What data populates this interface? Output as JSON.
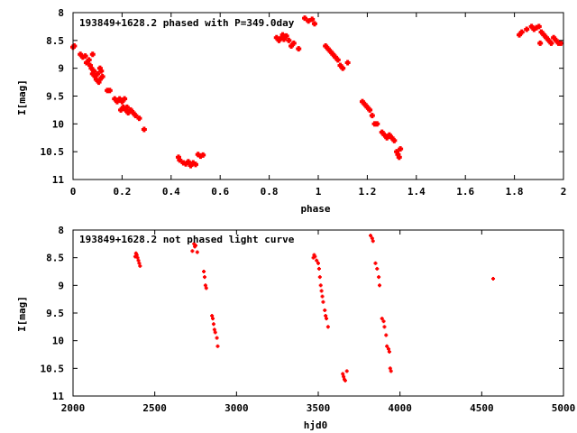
{
  "chart_data": [
    {
      "type": "scatter",
      "title": "193849+1628.2 phased with P=349.0day",
      "xlabel": "phase",
      "ylabel": "I[mag]",
      "xlim": [
        0,
        2
      ],
      "ylim": [
        11,
        8
      ],
      "y_inverted": true,
      "x_ticks": [
        0,
        0.2,
        0.4,
        0.6,
        0.8,
        1,
        1.2,
        1.4,
        1.6,
        1.8,
        2
      ],
      "x_tick_labels": [
        "0",
        "0.2",
        "0.4",
        "0.6",
        "0.8",
        "1",
        "1.2",
        "1.4",
        "1.6",
        "1.8",
        "2"
      ],
      "y_ticks": [
        8,
        8.5,
        9,
        9.5,
        10,
        10.5,
        11
      ],
      "y_tick_labels": [
        "8",
        "8.5",
        "9",
        "9.5",
        "10",
        "10.5",
        "11"
      ],
      "grid": false,
      "marker_color": "#ff0000",
      "marker": "plus-dot",
      "points": [
        [
          0.0,
          8.62
        ],
        [
          0.005,
          8.6
        ],
        [
          0.03,
          8.75
        ],
        [
          0.04,
          8.8
        ],
        [
          0.05,
          8.78
        ],
        [
          0.055,
          8.9
        ],
        [
          0.065,
          8.85
        ],
        [
          0.07,
          8.95
        ],
        [
          0.075,
          9.0
        ],
        [
          0.08,
          8.75
        ],
        [
          0.08,
          9.1
        ],
        [
          0.085,
          9.05
        ],
        [
          0.09,
          9.15
        ],
        [
          0.095,
          9.2
        ],
        [
          0.1,
          9.1
        ],
        [
          0.105,
          9.25
        ],
        [
          0.11,
          9.2
        ],
        [
          0.11,
          9.0
        ],
        [
          0.115,
          9.05
        ],
        [
          0.12,
          9.15
        ],
        [
          0.14,
          9.4
        ],
        [
          0.15,
          9.4
        ],
        [
          0.17,
          9.55
        ],
        [
          0.18,
          9.6
        ],
        [
          0.19,
          9.55
        ],
        [
          0.195,
          9.75
        ],
        [
          0.2,
          9.6
        ],
        [
          0.205,
          9.7
        ],
        [
          0.21,
          9.55
        ],
        [
          0.215,
          9.75
        ],
        [
          0.22,
          9.7
        ],
        [
          0.225,
          9.8
        ],
        [
          0.235,
          9.75
        ],
        [
          0.245,
          9.8
        ],
        [
          0.255,
          9.85
        ],
        [
          0.27,
          9.9
        ],
        [
          0.29,
          10.1
        ],
        [
          0.43,
          10.6
        ],
        [
          0.435,
          10.65
        ],
        [
          0.45,
          10.7
        ],
        [
          0.46,
          10.72
        ],
        [
          0.47,
          10.68
        ],
        [
          0.48,
          10.75
        ],
        [
          0.49,
          10.7
        ],
        [
          0.5,
          10.73
        ],
        [
          0.51,
          10.55
        ],
        [
          0.52,
          10.58
        ],
        [
          0.53,
          10.56
        ],
        [
          0.83,
          8.45
        ],
        [
          0.84,
          8.5
        ],
        [
          0.85,
          8.45
        ],
        [
          0.855,
          8.4
        ],
        [
          0.86,
          8.48
        ],
        [
          0.87,
          8.42
        ],
        [
          0.88,
          8.5
        ],
        [
          0.89,
          8.6
        ],
        [
          0.9,
          8.55
        ],
        [
          0.92,
          8.65
        ],
        [
          0.945,
          8.1
        ],
        [
          0.96,
          8.15
        ],
        [
          0.975,
          8.12
        ],
        [
          0.985,
          8.2
        ],
        [
          1.03,
          8.6
        ],
        [
          1.04,
          8.65
        ],
        [
          1.05,
          8.7
        ],
        [
          1.06,
          8.75
        ],
        [
          1.07,
          8.8
        ],
        [
          1.08,
          8.85
        ],
        [
          1.09,
          8.95
        ],
        [
          1.1,
          9.0
        ],
        [
          1.12,
          8.9
        ],
        [
          1.18,
          9.6
        ],
        [
          1.19,
          9.65
        ],
        [
          1.2,
          9.7
        ],
        [
          1.21,
          9.75
        ],
        [
          1.22,
          9.85
        ],
        [
          1.23,
          10.0
        ],
        [
          1.24,
          10.0
        ],
        [
          1.26,
          10.15
        ],
        [
          1.27,
          10.2
        ],
        [
          1.28,
          10.25
        ],
        [
          1.29,
          10.2
        ],
        [
          1.3,
          10.25
        ],
        [
          1.31,
          10.3
        ],
        [
          1.32,
          10.5
        ],
        [
          1.325,
          10.55
        ],
        [
          1.33,
          10.6
        ],
        [
          1.335,
          10.45
        ],
        [
          1.82,
          8.4
        ],
        [
          1.83,
          8.35
        ],
        [
          1.85,
          8.3
        ],
        [
          1.87,
          8.25
        ],
        [
          1.88,
          8.3
        ],
        [
          1.89,
          8.27
        ],
        [
          1.9,
          8.25
        ],
        [
          1.905,
          8.55
        ],
        [
          1.91,
          8.35
        ],
        [
          1.92,
          8.4
        ],
        [
          1.93,
          8.45
        ],
        [
          1.94,
          8.5
        ],
        [
          1.95,
          8.55
        ],
        [
          1.96,
          8.45
        ],
        [
          1.97,
          8.5
        ],
        [
          1.98,
          8.55
        ],
        [
          1.99,
          8.55
        ]
      ]
    },
    {
      "type": "scatter",
      "title": "193849+1628.2 not phased light curve",
      "xlabel": "hjd0",
      "ylabel": "I[mag]",
      "xlim": [
        2000,
        5000
      ],
      "ylim": [
        11,
        8
      ],
      "y_inverted": true,
      "x_ticks": [
        2000,
        2500,
        3000,
        3500,
        4000,
        4500,
        5000
      ],
      "x_tick_labels": [
        "2000",
        "2500",
        "3000",
        "3500",
        "4000",
        "4500",
        "5000"
      ],
      "y_ticks": [
        8,
        8.5,
        9,
        9.5,
        10,
        10.5,
        11
      ],
      "y_tick_labels": [
        "8",
        "8.5",
        "9",
        "9.5",
        "10",
        "10.5",
        "11"
      ],
      "grid": false,
      "marker_color": "#ff0000",
      "marker": "dot",
      "points": [
        [
          2380,
          8.48
        ],
        [
          2385,
          8.42
        ],
        [
          2390,
          8.45
        ],
        [
          2395,
          8.5
        ],
        [
          2400,
          8.55
        ],
        [
          2405,
          8.6
        ],
        [
          2410,
          8.65
        ],
        [
          2730,
          8.38
        ],
        [
          2740,
          8.25
        ],
        [
          2745,
          8.3
        ],
        [
          2750,
          8.28
        ],
        [
          2760,
          8.4
        ],
        [
          2800,
          8.75
        ],
        [
          2805,
          8.85
        ],
        [
          2810,
          9.0
        ],
        [
          2815,
          9.05
        ],
        [
          2850,
          9.55
        ],
        [
          2855,
          9.6
        ],
        [
          2860,
          9.7
        ],
        [
          2865,
          9.8
        ],
        [
          2870,
          9.85
        ],
        [
          2880,
          9.95
        ],
        [
          2885,
          10.1
        ],
        [
          3470,
          8.5
        ],
        [
          3475,
          8.45
        ],
        [
          3480,
          8.48
        ],
        [
          3490,
          8.55
        ],
        [
          3500,
          8.6
        ],
        [
          3505,
          8.7
        ],
        [
          3510,
          8.85
        ],
        [
          3515,
          9.0
        ],
        [
          3520,
          9.1
        ],
        [
          3525,
          9.2
        ],
        [
          3530,
          9.3
        ],
        [
          3540,
          9.45
        ],
        [
          3545,
          9.55
        ],
        [
          3550,
          9.6
        ],
        [
          3560,
          9.75
        ],
        [
          3650,
          10.6
        ],
        [
          3655,
          10.65
        ],
        [
          3660,
          10.7
        ],
        [
          3665,
          10.72
        ],
        [
          3675,
          10.55
        ],
        [
          3820,
          8.1
        ],
        [
          3830,
          8.15
        ],
        [
          3835,
          8.2
        ],
        [
          3850,
          8.6
        ],
        [
          3860,
          8.7
        ],
        [
          3870,
          8.85
        ],
        [
          3875,
          9.0
        ],
        [
          3890,
          9.6
        ],
        [
          3900,
          9.65
        ],
        [
          3905,
          9.75
        ],
        [
          3915,
          9.9
        ],
        [
          3920,
          10.1
        ],
        [
          3930,
          10.15
        ],
        [
          3935,
          10.2
        ],
        [
          3940,
          10.5
        ],
        [
          3945,
          10.55
        ],
        [
          4570,
          8.88
        ]
      ]
    }
  ]
}
